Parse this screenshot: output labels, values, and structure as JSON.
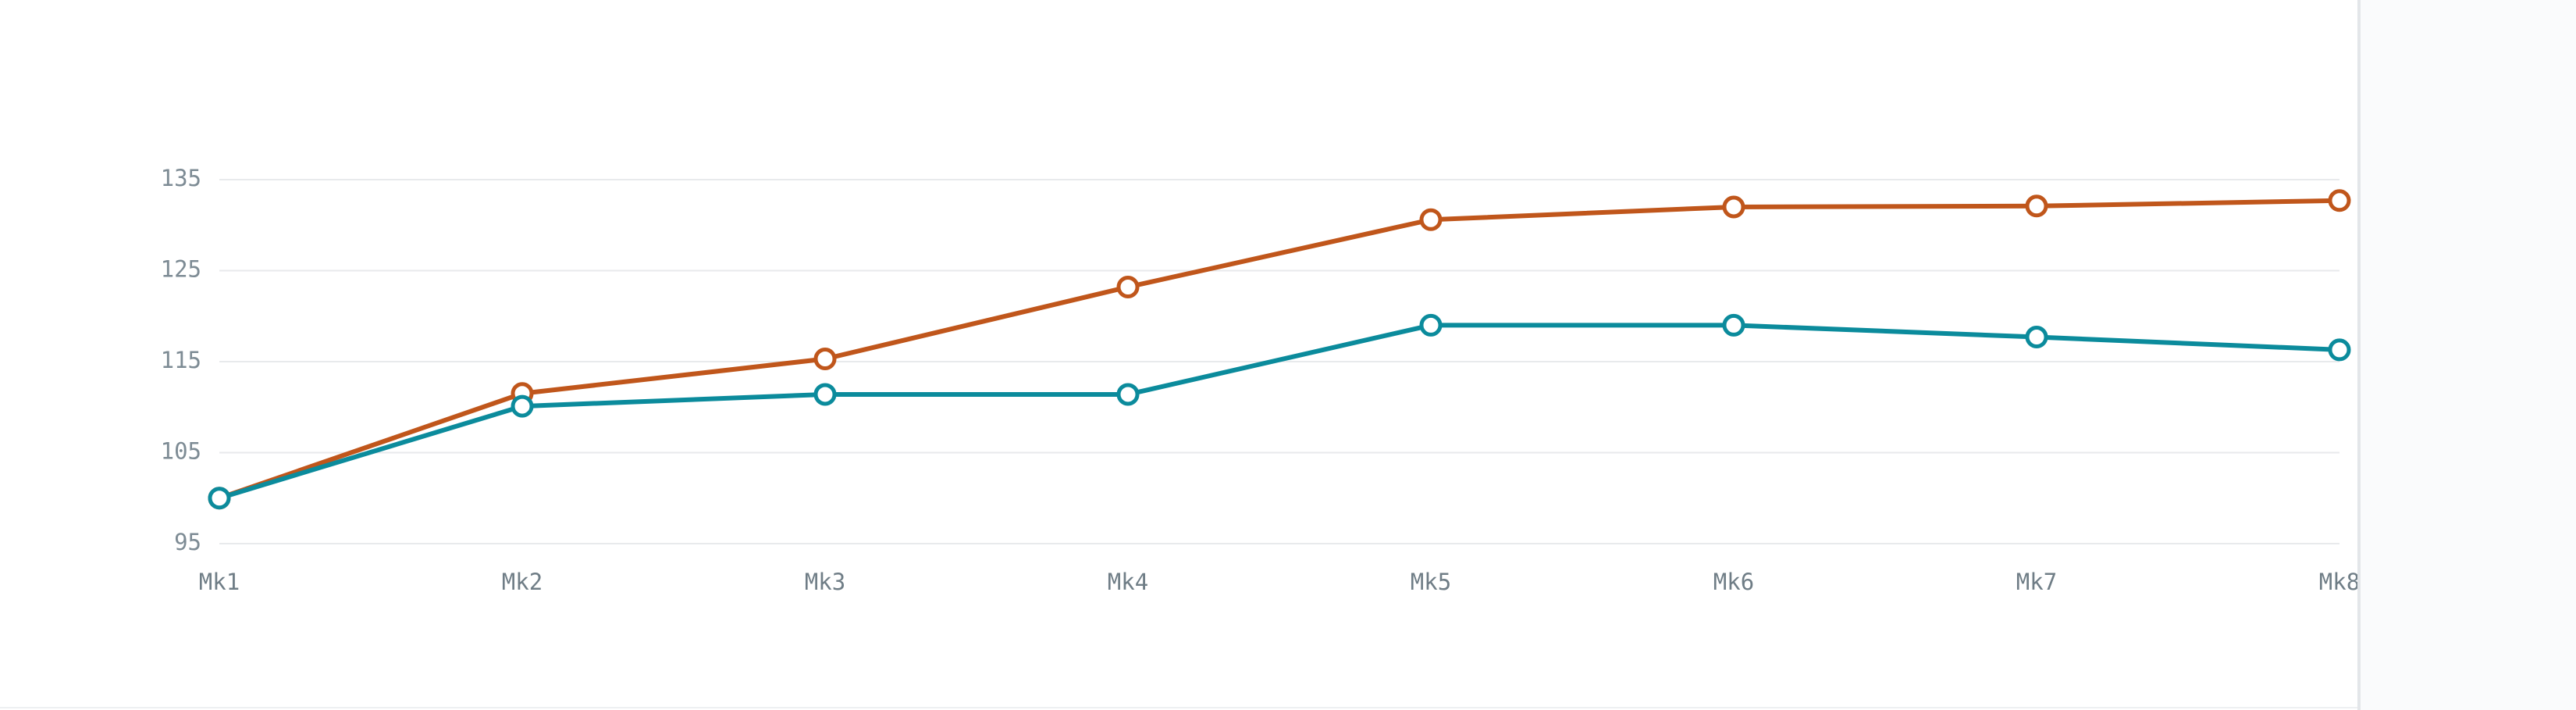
{
  "chart_data": {
    "type": "line",
    "categories": [
      "Mk1",
      "Mk2",
      "Mk3",
      "Mk4",
      "Mk5",
      "Mk6",
      "Mk7",
      "Mk8"
    ],
    "series": [
      {
        "color": "#c0561b",
        "values": [
          100,
          111.5,
          115.3,
          123.2,
          130.6,
          132,
          132.1,
          132.7
        ]
      },
      {
        "color": "#0b8b9c",
        "values": [
          100,
          110.1,
          111.4,
          111.4,
          119,
          119,
          117.7,
          116.3
        ]
      }
    ],
    "y_ticks": [
      "95",
      "105",
      "115",
      "125",
      "135"
    ],
    "ylim": [
      95,
      135
    ],
    "title": "",
    "xlabel": "",
    "ylabel": "",
    "grid": true,
    "legend": "none"
  },
  "colors": {
    "grid": "#e8eaec",
    "tick_text": "#7d8b94",
    "marker_fill": "#ffffff"
  }
}
